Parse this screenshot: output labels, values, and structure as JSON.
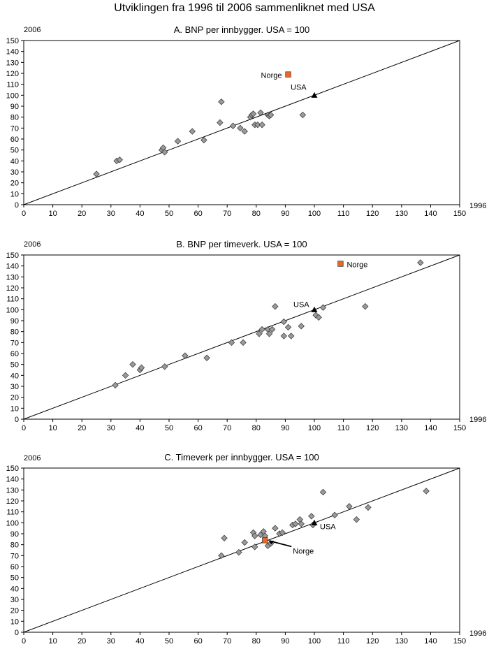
{
  "page": {
    "title": "Utviklingen fra 1996 til 2006 sammenliknet med USA"
  },
  "chart_data": [
    {
      "type": "scatter",
      "title": "A. BNP per innbygger. USA = 100",
      "ylabel": "2006",
      "xlabel": "1996",
      "xlim": [
        0,
        150
      ],
      "ylim": [
        0,
        150
      ],
      "xticks": [
        0,
        10,
        20,
        30,
        40,
        50,
        60,
        70,
        80,
        90,
        100,
        110,
        120,
        130,
        140,
        150
      ],
      "yticks": [
        0,
        10,
        20,
        30,
        40,
        50,
        60,
        70,
        80,
        90,
        100,
        110,
        120,
        130,
        140,
        150
      ],
      "reference_line": [
        [
          0,
          0
        ],
        [
          150,
          150
        ]
      ],
      "points": [
        [
          25,
          28
        ],
        [
          32,
          40
        ],
        [
          33,
          41
        ],
        [
          47.5,
          50
        ],
        [
          48,
          52
        ],
        [
          48.5,
          48
        ],
        [
          53,
          58
        ],
        [
          58,
          67
        ],
        [
          62,
          59
        ],
        [
          67.5,
          75
        ],
        [
          68,
          94
        ],
        [
          72,
          72
        ],
        [
          74.5,
          70
        ],
        [
          76,
          67
        ],
        [
          78,
          80
        ],
        [
          78.5,
          82
        ],
        [
          79,
          83
        ],
        [
          79.5,
          73
        ],
        [
          80.5,
          73
        ],
        [
          81.5,
          84
        ],
        [
          82,
          73
        ],
        [
          84,
          82
        ],
        [
          84.5,
          81
        ],
        [
          85,
          82
        ],
        [
          96,
          82
        ]
      ],
      "highlights": [
        {
          "label": "Norge",
          "x": 91,
          "y": 119,
          "marker": "square",
          "color": "#e8682a"
        },
        {
          "label": "USA",
          "x": 100,
          "y": 100,
          "marker": "triangle",
          "color": "#000000"
        }
      ]
    },
    {
      "type": "scatter",
      "title": "B. BNP per timeverk. USA = 100",
      "ylabel": "2006",
      "xlabel": "1996",
      "xlim": [
        0,
        150
      ],
      "ylim": [
        0,
        150
      ],
      "xticks": [
        0,
        10,
        20,
        30,
        40,
        50,
        60,
        70,
        80,
        90,
        100,
        110,
        120,
        130,
        140,
        150
      ],
      "yticks": [
        0,
        10,
        20,
        30,
        40,
        50,
        60,
        70,
        80,
        90,
        100,
        110,
        120,
        130,
        140,
        150
      ],
      "reference_line": [
        [
          0,
          0
        ],
        [
          150,
          150
        ]
      ],
      "points": [
        [
          31.5,
          31
        ],
        [
          35,
          40
        ],
        [
          37.5,
          50
        ],
        [
          40,
          45
        ],
        [
          40.5,
          47
        ],
        [
          48.5,
          48
        ],
        [
          55.5,
          58
        ],
        [
          63,
          56
        ],
        [
          71.5,
          70
        ],
        [
          75.5,
          70
        ],
        [
          81,
          78
        ],
        [
          82,
          82
        ],
        [
          84,
          82
        ],
        [
          84.5,
          78
        ],
        [
          85.5,
          82
        ],
        [
          86.5,
          103
        ],
        [
          89.5,
          89
        ],
        [
          89.5,
          76
        ],
        [
          91,
          84
        ],
        [
          92,
          76
        ],
        [
          95.5,
          85
        ],
        [
          100.5,
          95
        ],
        [
          101.5,
          93
        ],
        [
          103,
          102
        ],
        [
          117.5,
          103
        ],
        [
          136.5,
          143
        ]
      ],
      "highlights": [
        {
          "label": "Norge",
          "x": 109,
          "y": 142,
          "marker": "square",
          "color": "#e8682a"
        },
        {
          "label": "USA",
          "x": 100,
          "y": 100,
          "marker": "triangle",
          "color": "#000000"
        }
      ]
    },
    {
      "type": "scatter",
      "title": "C. Timeverk per innbygger. USA = 100",
      "ylabel": "2006",
      "xlabel": "1996",
      "xlim": [
        0,
        150
      ],
      "ylim": [
        0,
        150
      ],
      "xticks": [
        0,
        10,
        20,
        30,
        40,
        50,
        60,
        70,
        80,
        90,
        100,
        110,
        120,
        130,
        140,
        150
      ],
      "yticks": [
        0,
        10,
        20,
        30,
        40,
        50,
        60,
        70,
        80,
        90,
        100,
        110,
        120,
        130,
        140,
        150
      ],
      "reference_line": [
        [
          0,
          0
        ],
        [
          150,
          150
        ]
      ],
      "points": [
        [
          68,
          70
        ],
        [
          69,
          86
        ],
        [
          74,
          73
        ],
        [
          76,
          82
        ],
        [
          79,
          91
        ],
        [
          79.5,
          88
        ],
        [
          79.5,
          78
        ],
        [
          81.5,
          89
        ],
        [
          82.5,
          92
        ],
        [
          83,
          88
        ],
        [
          84,
          79
        ],
        [
          85,
          81
        ],
        [
          86.5,
          95
        ],
        [
          88,
          90
        ],
        [
          89,
          91
        ],
        [
          92.5,
          98
        ],
        [
          93.5,
          99
        ],
        [
          95,
          103
        ],
        [
          95.5,
          99
        ],
        [
          99,
          106
        ],
        [
          99.5,
          98
        ],
        [
          103,
          128
        ],
        [
          107,
          107
        ],
        [
          112,
          115
        ],
        [
          114.5,
          103
        ],
        [
          118.5,
          114
        ],
        [
          138.5,
          129
        ]
      ],
      "highlights": [
        {
          "label": "Norge",
          "x": 83,
          "y": 84,
          "marker": "square",
          "color": "#e8682a"
        },
        {
          "label": "USA",
          "x": 100,
          "y": 100,
          "marker": "triangle",
          "color": "#000000"
        }
      ]
    }
  ]
}
